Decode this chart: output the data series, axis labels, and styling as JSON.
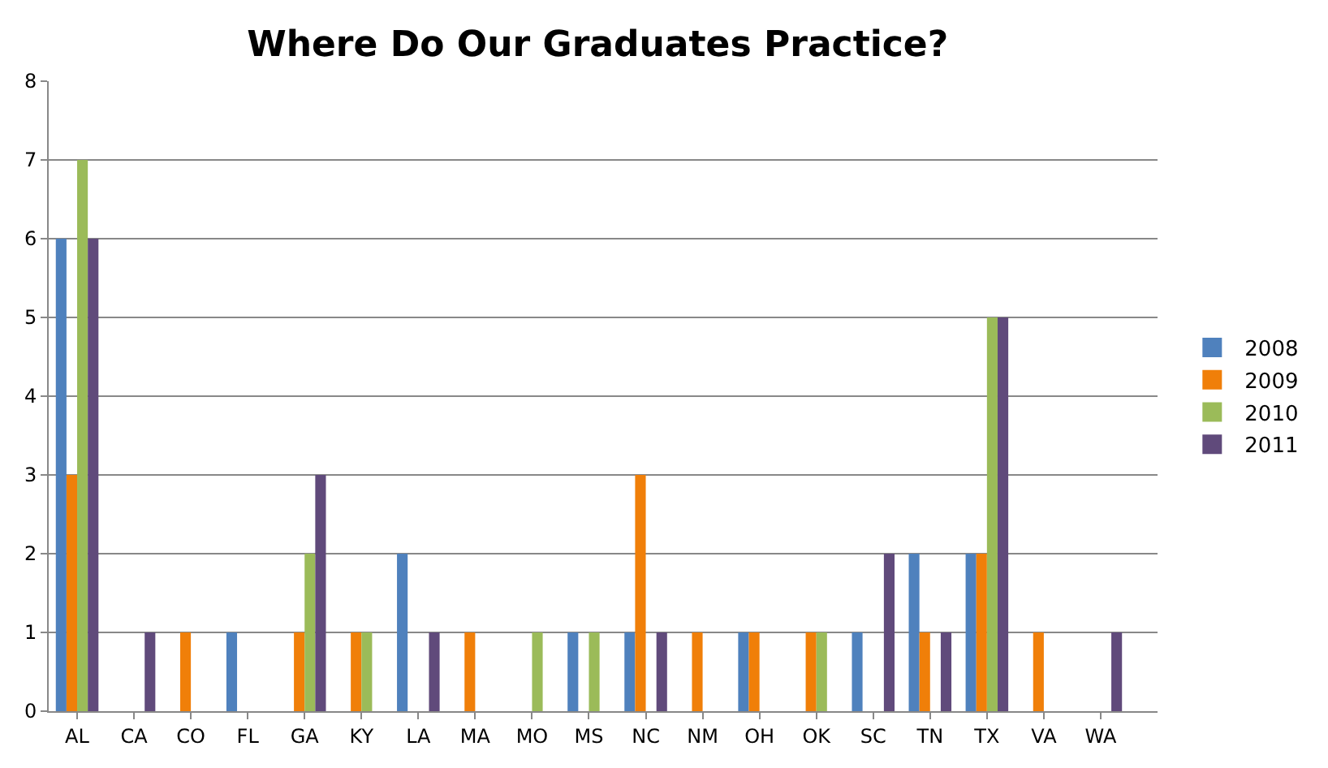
{
  "chart_data": {
    "type": "bar",
    "title": "Where Do Our Graduates Practice?",
    "categories": [
      "AL",
      "CA",
      "CO",
      "FL",
      "GA",
      "KY",
      "LA",
      "MA",
      "MO",
      "MS",
      "NC",
      "NM",
      "OH",
      "OK",
      "SC",
      "TN",
      "TX",
      "VA",
      "WA"
    ],
    "series": [
      {
        "name": "2008",
        "color": "#4f81bd",
        "values": [
          6,
          0,
          0,
          1,
          0,
          0,
          2,
          0,
          0,
          1,
          1,
          0,
          1,
          0,
          1,
          2,
          2,
          0,
          0
        ]
      },
      {
        "name": "2009",
        "color": "#f07f09",
        "values": [
          3,
          0,
          1,
          0,
          1,
          1,
          0,
          1,
          0,
          0,
          3,
          1,
          1,
          1,
          0,
          1,
          2,
          1,
          0
        ]
      },
      {
        "name": "2010",
        "color": "#9bbb59",
        "values": [
          7,
          0,
          0,
          0,
          2,
          1,
          0,
          0,
          1,
          1,
          0,
          0,
          0,
          1,
          0,
          0,
          5,
          0,
          0
        ]
      },
      {
        "name": "2011",
        "color": "#604a7b",
        "values": [
          6,
          1,
          0,
          0,
          3,
          0,
          1,
          0,
          0,
          0,
          1,
          0,
          0,
          0,
          2,
          1,
          5,
          0,
          1
        ]
      }
    ],
    "ylim": [
      0,
      8
    ],
    "yticks": [
      0,
      1,
      2,
      3,
      4,
      5,
      6,
      7,
      8
    ],
    "grid": "y",
    "legend": "right"
  }
}
